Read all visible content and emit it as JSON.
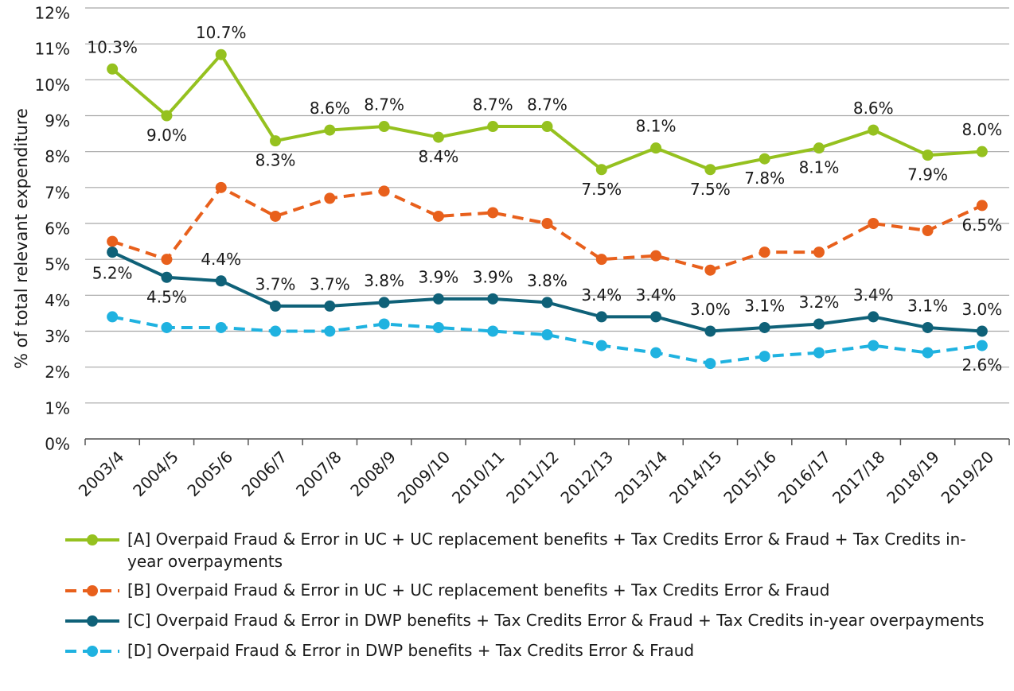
{
  "chart_data": {
    "type": "line",
    "y_label": "% of total relevant expenditure",
    "categories": [
      "2003/4",
      "2004/5",
      "2005/6",
      "2006/7",
      "2007/8",
      "2008/9",
      "2009/10",
      "2010/11",
      "2011/12",
      "2012/13",
      "2013/14",
      "2014/15",
      "2015/16",
      "2016/17",
      "2017/18",
      "2018/19",
      "2019/20"
    ],
    "series": [
      {
        "name": "[A] Overpaid Fraud & Error in UC + UC replacement benefits + Tax Credits Error & Fraud + Tax Credits in-year overpayments",
        "color": "#95c11f",
        "dash": false,
        "values": [
          10.3,
          9.0,
          10.7,
          8.3,
          8.6,
          8.7,
          8.4,
          8.7,
          8.7,
          7.5,
          8.1,
          7.5,
          7.8,
          8.1,
          8.6,
          7.9,
          8.0
        ],
        "value_labels": [
          "10.3%",
          "9.0%",
          "10.7%",
          "8.3%",
          "8.6%",
          "8.7%",
          "8.4%",
          "8.7%",
          "8.7%",
          "7.5%",
          "8.1%",
          "7.5%",
          "7.8%",
          "8.1%",
          "8.6%",
          "7.9%",
          "8.0%"
        ]
      },
      {
        "name": "[B] Overpaid Fraud & Error in UC + UC replacement benefits + Tax Credits Error & Fraud",
        "color": "#e8601c",
        "dash": true,
        "values": [
          5.5,
          5.0,
          7.0,
          6.2,
          6.7,
          6.9,
          6.2,
          6.3,
          6.0,
          5.0,
          5.1,
          4.7,
          5.2,
          5.2,
          6.0,
          5.8,
          6.5
        ],
        "value_labels": [
          null,
          null,
          null,
          null,
          null,
          null,
          null,
          null,
          null,
          null,
          null,
          null,
          null,
          null,
          null,
          null,
          "6.5%"
        ]
      },
      {
        "name": "[C] Overpaid Fraud & Error in DWP benefits + Tax Credits Error & Fraud + Tax Credits in-year overpayments",
        "color": "#0f6178",
        "dash": false,
        "values": [
          5.2,
          4.5,
          4.4,
          3.7,
          3.7,
          3.8,
          3.9,
          3.9,
          3.8,
          3.4,
          3.4,
          3.0,
          3.1,
          3.2,
          3.4,
          3.1,
          3.0
        ],
        "value_labels": [
          "5.2%",
          "4.5%",
          "4.4%",
          "3.7%",
          "3.7%",
          "3.8%",
          "3.9%",
          "3.9%",
          "3.8%",
          "3.4%",
          "3.4%",
          "3.0%",
          "3.1%",
          "3.2%",
          "3.4%",
          "3.1%",
          "3.0%"
        ]
      },
      {
        "name": "[D] Overpaid Fraud & Error in DWP benefits + Tax Credits Error & Fraud",
        "color": "#1fb2e0",
        "dash": true,
        "values": [
          3.4,
          3.1,
          3.1,
          3.0,
          3.0,
          3.2,
          3.1,
          3.0,
          2.9,
          2.6,
          2.4,
          2.1,
          2.3,
          2.4,
          2.6,
          2.4,
          2.6
        ],
        "value_labels": [
          null,
          null,
          null,
          null,
          null,
          null,
          null,
          null,
          null,
          null,
          null,
          null,
          null,
          null,
          null,
          null,
          "2.6%"
        ]
      }
    ],
    "ylim": [
      0,
      12
    ],
    "yticks": [
      {
        "value": 0,
        "label": "0%"
      },
      {
        "value": 1,
        "label": "1%"
      },
      {
        "value": 2,
        "label": "2%"
      },
      {
        "value": 3,
        "label": "3%"
      },
      {
        "value": 4,
        "label": "4%"
      },
      {
        "value": 5,
        "label": "5%"
      },
      {
        "value": 6,
        "label": "6%"
      },
      {
        "value": 7,
        "label": "7%"
      },
      {
        "value": 8,
        "label": "8%"
      },
      {
        "value": 9,
        "label": "9%"
      },
      {
        "value": 10,
        "label": "10%"
      },
      {
        "value": 11,
        "label": "11%"
      },
      {
        "value": 12,
        "label": "12%"
      }
    ],
    "grid": true
  }
}
